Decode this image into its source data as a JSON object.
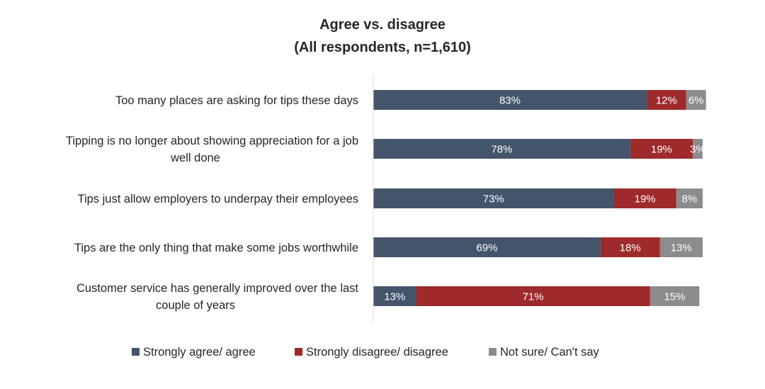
{
  "chart_data": {
    "type": "bar",
    "orientation": "horizontal",
    "stacked": true,
    "title": "Agree vs. disagree",
    "subtitle": "(All respondents, n=1,610)",
    "categories": [
      [
        "Too many places are asking for tips these days"
      ],
      [
        "Tipping is no longer about showing appreciation for a job",
        "well done"
      ],
      [
        "Tips just allow employers to underpay their employees"
      ],
      [
        "Tips are the only thing that make some jobs worthwhile"
      ],
      [
        "Customer service has generally improved over the last",
        "couple of years"
      ]
    ],
    "series": [
      {
        "name": "Strongly agree/ agree",
        "color": "#44546a",
        "values": [
          83,
          78,
          73,
          69,
          13
        ]
      },
      {
        "name": "Strongly disagree/ disagree",
        "color": "#9e2a2b",
        "values": [
          12,
          19,
          19,
          18,
          71
        ]
      },
      {
        "name": "Not sure/ Can't say",
        "color": "#8c8c8c",
        "values": [
          6,
          3,
          8,
          13,
          15
        ]
      }
    ],
    "value_suffix": "%",
    "xlim": [
      0,
      100
    ],
    "grid": false,
    "legend_position": "bottom"
  }
}
